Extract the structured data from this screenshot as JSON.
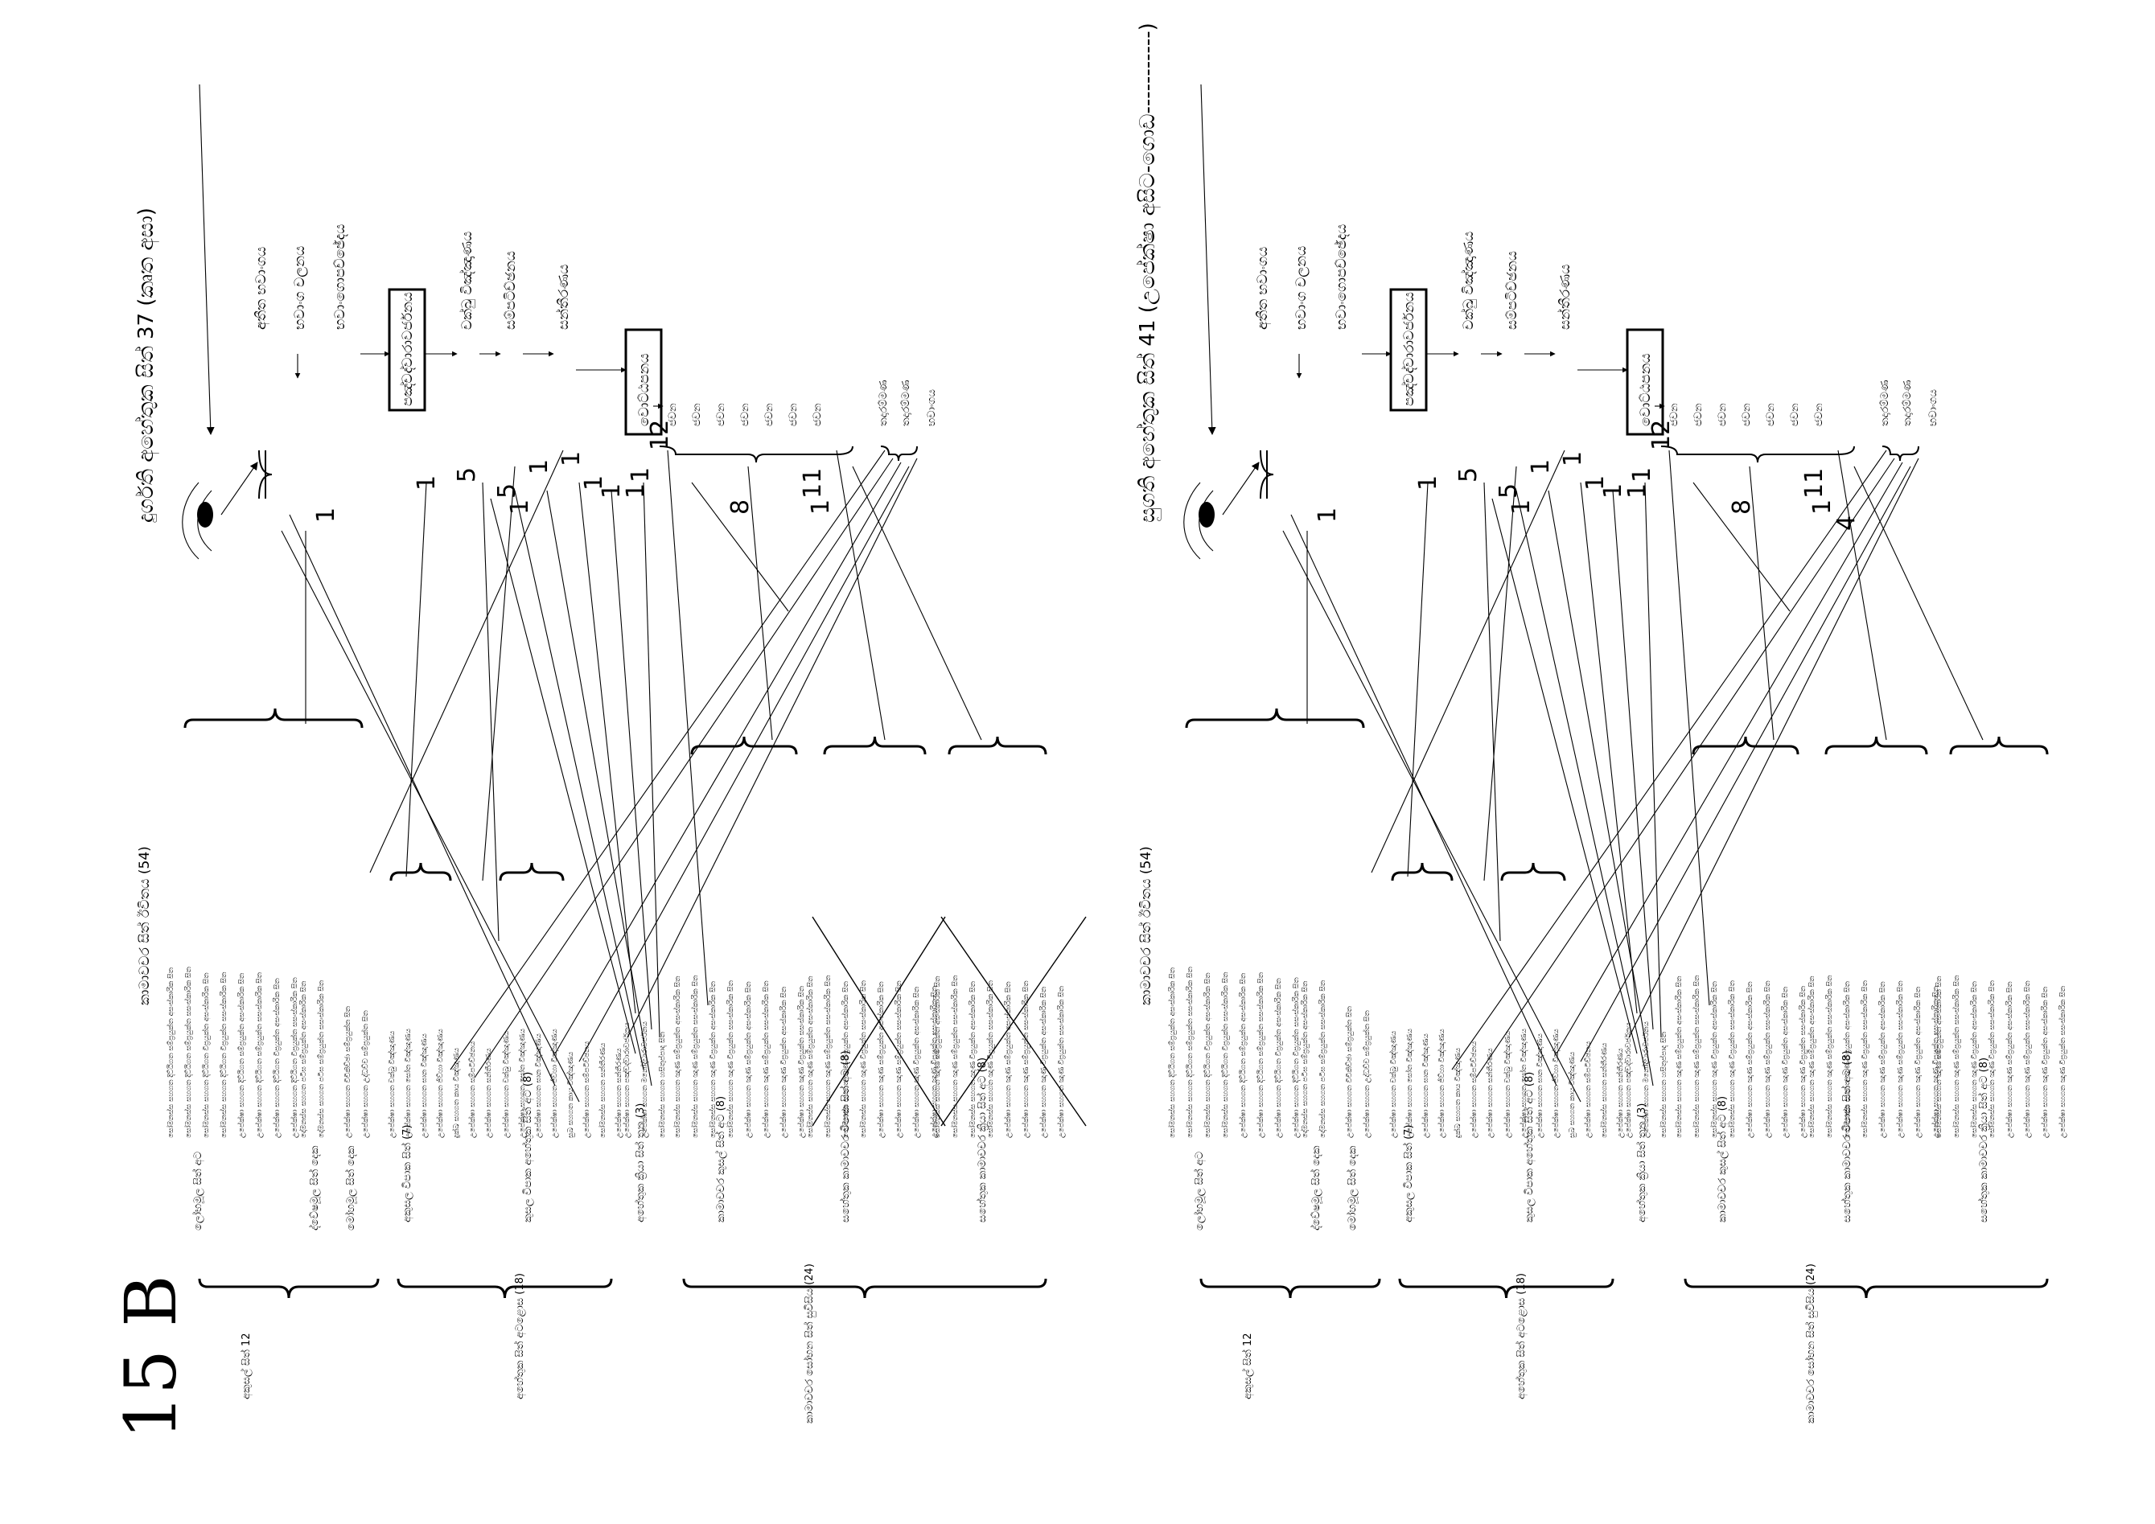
{
  "page_label": "15 B",
  "diagrams": [
    {
      "heading": "දුර්ගති අහේතුක සිත් 37 (කෘත අසා)",
      "process": {
        "bhavanga": [
          "අතීත භවාංගය",
          "භවාංග චලනය",
          "භවාංගොපච්ඡේදය"
        ],
        "panca_dvaravajjana": "පඤ්චද්වාරාවර්ජනය",
        "cakkhu_vinnana": "චක්ඛු විඤ්ඤාණය",
        "sampaticchana": "සම්පටිච්ඡනය",
        "santirana": "සන්තීරණය",
        "votthapana": "වොට්ඨපනය",
        "javana": [
          "ජවන",
          "ජවන",
          "ජවන",
          "ජවන",
          "ජවන",
          "ජවන",
          "ජවන"
        ],
        "tadarammana": [
          "තදාරම්මණ",
          "තදාරම්මණ"
        ],
        "final": "භවාංගය"
      },
      "numbers": [
        "1",
        "1",
        "5",
        "5",
        "1",
        "1",
        "1",
        "1",
        "1",
        "1",
        "1",
        "12",
        "8",
        "11",
        "1"
      ],
      "kamavacara_title": "කාමාවචර සිත් ඊවිතය (54)",
      "groups": {
        "akusala": {
          "title": "අකුසල් සිත් 12",
          "subs": [
            "ලෝභමූල සිත් අට",
            "ද්වේෂමූල සිත් දෙක",
            "මෝහමූල සිත් දෙක"
          ]
        },
        "ahetuka": {
          "title": "අහේතුක සිත් අටළොස (18)",
          "subs": [
            "අකුසල විපාක සිත් (7)",
            "කුසල විපාක අහේතුක සිත් අට (8)",
            "අහේතුක ක්‍රියා සිත් තුන (3)"
          ]
        },
        "sobhana": {
          "title": "කාමාවචර සෝභන සිත් සුවිසිය (24)",
          "subs": [
            "කාමාවචර කුසල් සිත් අට (8)",
            "සහේතුක කාමාවචර විපාක සිත් අට (8)",
            "සහේතුක කාමාවචර ක්‍රියා සිත් අට (8)"
          ]
        }
      },
      "citta_lines": {
        "lobha": [
          "සෝමනස්ස සහගත දිට්ඨිගත සම්ප්‍රයුක්ත අසංස්කාරික සිත",
          "සෝමනස්ස සහගත දිට්ඨිගත සම්ප්‍රයුක්ත සසංස්කාරික සිත",
          "සෝමනස්ස සහගත දිට්ඨිගත විප්‍රයුක්ත අසංස්කාරික සිත",
          "සෝමනස්ස සහගත දිට්ඨිගත විප්‍රයුක්ත සසංස්කාරික සිත",
          "උපේක්ෂා සහගත දිට්ඨිගත සම්ප්‍රයුක්ත අසංස්කාරික සිත",
          "උපේක්ෂා සහගත දිට්ඨිගත සම්ප්‍රයුක්ත සසංස්කාරික සිත",
          "උපේක්ෂා සහගත දිට්ඨිගත විප්‍රයුක්ත අසංස්කාරික සිත",
          "උපේක්ෂා සහගත දිට්ඨිගත විප්‍රයුක්ත සසංස්කාරික සිත"
        ],
        "dosa": [
          "දෝමනස්ස සහගත පටිඝ සම්ප්‍රයුක්ත අසංස්කාරික සිත",
          "දෝමනස්ස සහගත පටිඝ සම්ප්‍රයුක්ත සසංස්කාරික සිත"
        ],
        "moha": [
          "උපේක්ෂා සහගත විචිකිච්ඡා සම්ප්‍රයුක්ත සිත",
          "උපේක්ෂා සහගත උද්ධච්ච සම්ප්‍රයුක්ත සිත"
        ],
        "akusala_vipaka": [
          "උපේක්ෂා සහගත චක්ඛු විඤ්ඤාණය",
          "උපේක්ෂා සහගත සෝත විඤ්ඤාණය",
          "උපේක්ෂා සහගත ඝාන විඤ්ඤාණය",
          "උපේක්ෂා සහගත ජිව්හා විඤ්ඤාණය",
          "දුක්ඛ සහගත කාය විඤ්ඤාණය",
          "උපේක්ෂා සහගත සම්පටිච්ඡනය",
          "උපේක්ෂා සහගත සන්තීරණය"
        ],
        "kusala_vipaka": [
          "උපේක්ෂා සහගත චක්ඛු විඤ්ඤාණය",
          "උපේක්ෂා සහගත සෝත විඤ්ඤාණය",
          "උපේක්ෂා සහගත ඝාන විඤ්ඤාණය",
          "උපේක්ෂා සහගත ජිව්හා විඤ්ඤාණය",
          "සුඛ සහගත කාය විඤ්ඤාණය",
          "උපේක්ෂා සහගත සම්පටිච්ඡනය",
          "සෝමනස්ස සහගත සන්තීරණය",
          "උපේක්ෂා සහගත සන්තීරණය"
        ],
        "kiriya": [
          "උපේක්ෂා සහගත පඤ්චද්වාරාවර්ජනය",
          "උපේක්ෂා සහගත මනෝද්වාරාවර්ජනය",
          "සෝමනස්ස සහගත හසිතුප්පාද සිත"
        ],
        "kusala": [
          "සෝමනස්ස සහගත ඤාණ සම්ප්‍රයුක්ත අසංස්කාරික සිත",
          "සෝමනස්ස සහගත ඤාණ සම්ප්‍රයුක්ත සසංස්කාරික සිත",
          "සෝමනස්ස සහගත ඤාණ විප්‍රයුක්ත අසංස්කාරික සිත",
          "සෝමනස්ස සහගත ඤාණ විප්‍රයුක්ත සසංස්කාරික සිත",
          "උපේක්ෂා සහගත ඤාණ සම්ප්‍රයුක්ත අසංස්කාරික සිත",
          "උපේක්ෂා සහගත ඤාණ සම්ප්‍රයුක්ත සසංස්කාරික සිත",
          "උපේක්ෂා සහගත ඤාණ විප්‍රයුක්ත අසංස්කාරික සිත",
          "උපේක්ෂා සහගත ඤාණ විප්‍රයුක්ත සසංස්කාරික සිත"
        ]
      }
    },
    {
      "heading": "සුගති අහේතුක සිත් 41 (උපේක්ෂා අසිට-ගොඩ-----------)",
      "process": {
        "bhavanga": [
          "අතීත භවාංගය",
          "භවාංග චලනය",
          "භවාංගොපච්ඡේදය"
        ],
        "panca_dvaravajjana": "පඤ්චද්වාරාවර්ජනය",
        "cakkhu_vinnana": "චක්ඛු විඤ්ඤාණය",
        "sampaticchana": "සම්පටිච්ඡනය",
        "santirana": "සන්තීරණය",
        "votthapana": "වොට්ඨපනය",
        "javana": [
          "ජවන",
          "ජවන",
          "ජවන",
          "ජවන",
          "ජවන",
          "ජවන",
          "ජවන"
        ],
        "tadarammana": [
          "තදාරම්මණ",
          "තදාරම්මණ"
        ],
        "final": "භවාංගය"
      },
      "numbers": [
        "1",
        "1",
        "5",
        "5",
        "1",
        "1",
        "1",
        "1",
        "1",
        "1",
        "1",
        "12",
        "8",
        "11",
        "1",
        "4"
      ],
      "kamavacara_title": "කාමාවචර සිත් ඊවිතය (54)",
      "groups": {
        "akusala": {
          "title": "අකුසල් සිත් 12",
          "subs": [
            "ලෝභමූල සිත් අට",
            "ද්වේෂමූල සිත් දෙක",
            "මෝහමූල සිත් දෙක"
          ]
        },
        "ahetuka": {
          "title": "අහේතුක සිත් අටළොස (18)",
          "subs": [
            "අකුසල විපාක සිත් (7)",
            "කුසල විපාක අහේතුක සිත් අට (8)",
            "අහේතුක ක්‍රියා සිත් තුන (3)"
          ]
        },
        "sobhana": {
          "title": "කාමාවචර සෝභන සිත් සුවිසිය (24)",
          "subs": [
            "කාමාවචර කුසල් සිත් අට (8)",
            "සහේතුක කාමාවචර විපාක සිත් අට (8)",
            "සහේතුක කාමාවචර ක්‍රියා සිත් අට (8)"
          ]
        }
      }
    }
  ]
}
